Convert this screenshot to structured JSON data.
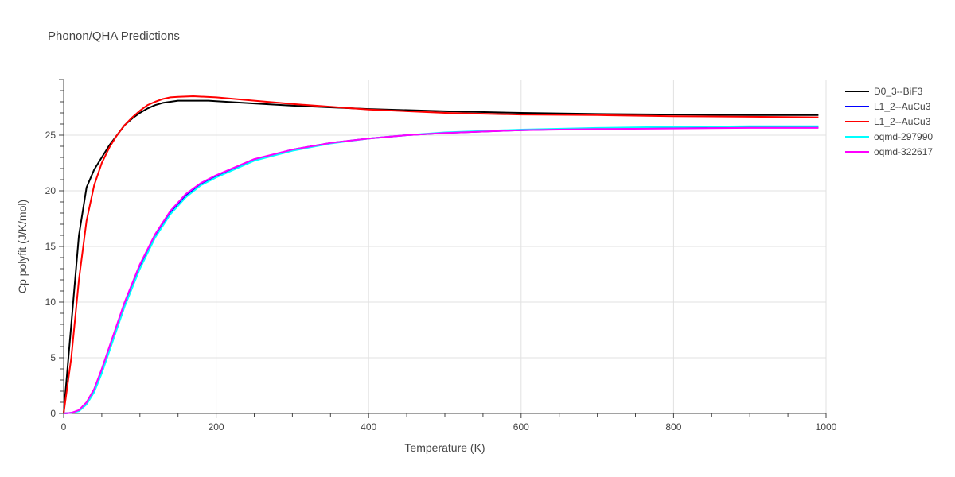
{
  "chart_data": {
    "type": "line",
    "title": "Phonon/QHA Predictions",
    "xlabel": "Temperature (K)",
    "ylabel": "Cp polyfit (J/K/mol)",
    "xlim": [
      0,
      1000
    ],
    "ylim": [
      0,
      30
    ],
    "xticks": [
      0,
      200,
      400,
      600,
      800,
      1000
    ],
    "yticks": [
      0,
      5,
      10,
      15,
      20,
      25
    ],
    "grid": true,
    "legend_position": "top-right",
    "series": [
      {
        "name": "D0_3--BiF3",
        "color": "#000000",
        "x": [
          0,
          10,
          20,
          30,
          40,
          50,
          60,
          70,
          80,
          90,
          100,
          110,
          120,
          130,
          140,
          150,
          170,
          190,
          200,
          250,
          300,
          400,
          500,
          600,
          700,
          800,
          900,
          990
        ],
        "y": [
          0,
          8,
          16,
          20.3,
          21.9,
          23.0,
          24.1,
          25.0,
          25.9,
          26.5,
          27.0,
          27.4,
          27.7,
          27.9,
          28.0,
          28.1,
          28.1,
          28.1,
          28.05,
          27.85,
          27.65,
          27.35,
          27.15,
          27.0,
          26.9,
          26.85,
          26.8,
          26.8
        ]
      },
      {
        "name": "L1_2--AuCu3",
        "color": "#0000ff",
        "x": [
          0,
          10,
          20,
          30,
          40,
          50,
          60,
          80,
          100,
          120,
          140,
          160,
          180,
          200,
          250,
          300,
          350,
          400,
          450,
          500,
          600,
          700,
          800,
          900,
          990
        ],
        "y": [
          0,
          0.05,
          0.25,
          0.9,
          2.1,
          3.9,
          5.9,
          9.9,
          13.3,
          16.0,
          18.1,
          19.6,
          20.6,
          21.3,
          22.8,
          23.7,
          24.3,
          24.7,
          25.0,
          25.2,
          25.45,
          25.6,
          25.65,
          25.7,
          25.7
        ]
      },
      {
        "name": "L1_2--AuCu3",
        "color": "#ff0000",
        "x": [
          0,
          10,
          20,
          30,
          40,
          50,
          60,
          70,
          80,
          90,
          100,
          110,
          120,
          130,
          140,
          150,
          170,
          200,
          250,
          300,
          400,
          500,
          600,
          700,
          800,
          900,
          990
        ],
        "y": [
          0,
          5,
          12,
          17.3,
          20.5,
          22.5,
          23.9,
          25.0,
          25.9,
          26.6,
          27.2,
          27.7,
          28.0,
          28.25,
          28.4,
          28.45,
          28.5,
          28.4,
          28.1,
          27.8,
          27.3,
          27.0,
          26.85,
          26.8,
          26.7,
          26.65,
          26.6
        ]
      },
      {
        "name": "oqmd-297990",
        "color": "#00ffff",
        "x": [
          0,
          10,
          20,
          30,
          40,
          50,
          60,
          80,
          100,
          120,
          140,
          160,
          180,
          200,
          250,
          300,
          350,
          400,
          450,
          500,
          600,
          700,
          800,
          900,
          990
        ],
        "y": [
          0,
          0.05,
          0.2,
          0.8,
          1.9,
          3.6,
          5.6,
          9.6,
          13.0,
          15.8,
          17.9,
          19.4,
          20.5,
          21.2,
          22.7,
          23.6,
          24.25,
          24.7,
          25.0,
          25.25,
          25.5,
          25.65,
          25.75,
          25.8,
          25.8
        ]
      },
      {
        "name": "oqmd-322617",
        "color": "#ff00ff",
        "x": [
          0,
          10,
          20,
          30,
          40,
          50,
          60,
          80,
          100,
          120,
          140,
          160,
          180,
          200,
          250,
          300,
          350,
          400,
          450,
          500,
          600,
          700,
          800,
          900,
          990
        ],
        "y": [
          0,
          0.05,
          0.3,
          1.0,
          2.2,
          4.0,
          6.0,
          10.0,
          13.4,
          16.1,
          18.2,
          19.7,
          20.7,
          21.4,
          22.85,
          23.7,
          24.3,
          24.7,
          25.0,
          25.2,
          25.45,
          25.55,
          25.6,
          25.65,
          25.65
        ]
      }
    ]
  }
}
